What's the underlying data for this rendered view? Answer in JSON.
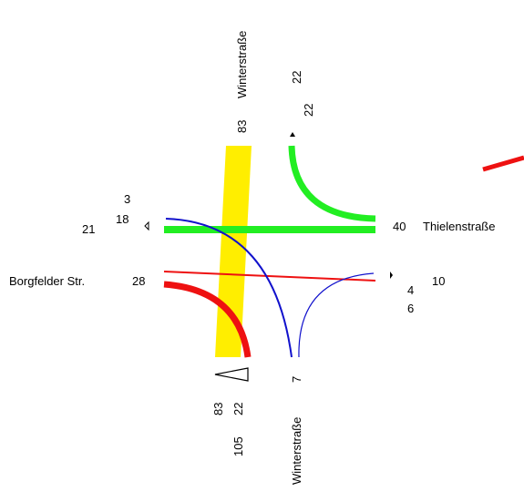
{
  "colors": {
    "background": "#ffffff",
    "winterstrasse_through": "#ffee00",
    "thielen_flow": "#22ee22",
    "borgfelder_flow": "#ee1111",
    "minor_flow": "#1111cc",
    "marker": "#000000"
  },
  "streets": {
    "north": "Winterstraße",
    "south": "Winterstraße",
    "east": "Thielenstraße",
    "west": "Borgfelder Str."
  },
  "north_arm": {
    "total": "83",
    "out_top": "22",
    "out_bottom": "22"
  },
  "west_arm": {
    "top": "3",
    "mid": "18",
    "left": "21",
    "borgfelder": "28"
  },
  "east_arm": {
    "thielen": "40",
    "right": "10",
    "a": "4",
    "b": "6"
  },
  "south_arm": {
    "c1": "83",
    "c2": "22",
    "total": "105",
    "minor": "7"
  },
  "icons": {
    "south_arrow": "left-triangle-arrow-icon",
    "west_marker": "direction-marker-icon",
    "east_marker": "direction-marker-icon",
    "north_marker": "direction-marker-icon"
  }
}
